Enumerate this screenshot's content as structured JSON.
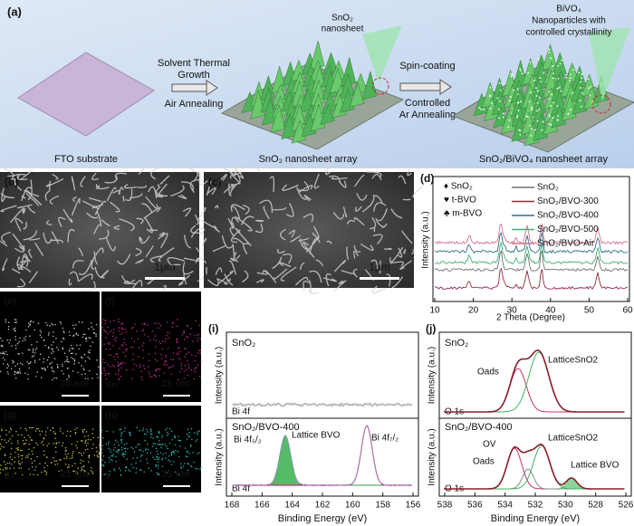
{
  "panel_a": {
    "label": "(a)",
    "substrate": "FTO substrate",
    "step1_line1": "Solvent Thermal",
    "step1_line2": "Growth",
    "step1_line3": "Air Annealing",
    "callout1": "SnO₂",
    "callout1b": "nanosheet",
    "array1": "SnO₂ nanosheet array",
    "step2_line1": "Spin-coating",
    "step2_line2": "Controlled",
    "step2_line3": "Ar Annealing",
    "callout2": "BiVO₄",
    "callout2b": "Nanoparticles with",
    "callout2c": "controlled  crystallinity",
    "array2": "SnO₂/BiVO₄ nanosheet array"
  },
  "panel_b": {
    "label": "(b)",
    "scale": "1μm"
  },
  "panel_c": {
    "label": "(c)",
    "scale": "1μm"
  },
  "panel_d": {
    "label": "(d)",
    "ylabel": "Intensity (a.u.)",
    "xlabel": "2 Theta (Degree)",
    "xlim": [
      10,
      60
    ],
    "xticks": [
      10,
      20,
      30,
      40,
      50,
      60
    ],
    "phases": [
      "♦ SnO₂",
      "♥ t-BVO",
      "♣ m-BVO"
    ],
    "series": [
      {
        "name": "SnO₂",
        "color": "#707070"
      },
      {
        "name": "SnO₂/BVO-300",
        "color": "#8e2b3c"
      },
      {
        "name": "SnO₂/BVO-400",
        "color": "#2f6d8c"
      },
      {
        "name": "SnO₂/BVO-500",
        "color": "#3fb277"
      },
      {
        "name": "SnO₂/BVO-Air",
        "color": "#d8708a"
      }
    ]
  },
  "panel_e": {
    "label": "(e)",
    "scale": "25 nm"
  },
  "panel_f": {
    "label": "(f)",
    "scale": "25 nm",
    "element": "Sn"
  },
  "panel_g": {
    "label": "(g)",
    "scale": "25 nm",
    "element": "Bi"
  },
  "panel_h": {
    "label": "(h)",
    "scale": "25 nm",
    "element": "V"
  },
  "panel_i": {
    "label": "(i)",
    "ylabel_top": "Intensity (a.u.)",
    "ylabel_bottom": "Intensity (a.u.)",
    "top_sample": "SnO₂",
    "top_orbital": "Bi 4f",
    "bottom_sample": "SnO₂/BVO-400",
    "peak1": "Bi 4f₅/₂",
    "peak2": "Lattice BVO",
    "peak3": "Bi 4f₇/₂",
    "bottom_orbital": "Bi 4f",
    "xlabel": "Binding Energy (eV)",
    "xlim": [
      168,
      156
    ],
    "xticks": [
      168,
      166,
      164,
      162,
      160,
      158,
      156
    ]
  },
  "panel_j": {
    "label": "(j)",
    "ylabel_top": "Intensity (a.u.)",
    "ylabel_bottom": "Intensity (a.u.)",
    "top_sample": "SnO₂",
    "top_lattice": "LatticeSnO2",
    "top_oads": "Oads",
    "top_orbital": "O 1s",
    "bottom_sample": "SnO₂/BVO-400",
    "bottom_ov": "OV",
    "bottom_oads": "Oads",
    "bottom_lattice": "LatticeSnO2",
    "bottom_bvo": "Lattice BVO",
    "bottom_orbital": "O 1s",
    "xlabel": "Binding Energy (eV)",
    "xlim": [
      538,
      526
    ],
    "xticks": [
      538,
      536,
      534,
      532,
      530,
      528,
      526
    ]
  }
}
